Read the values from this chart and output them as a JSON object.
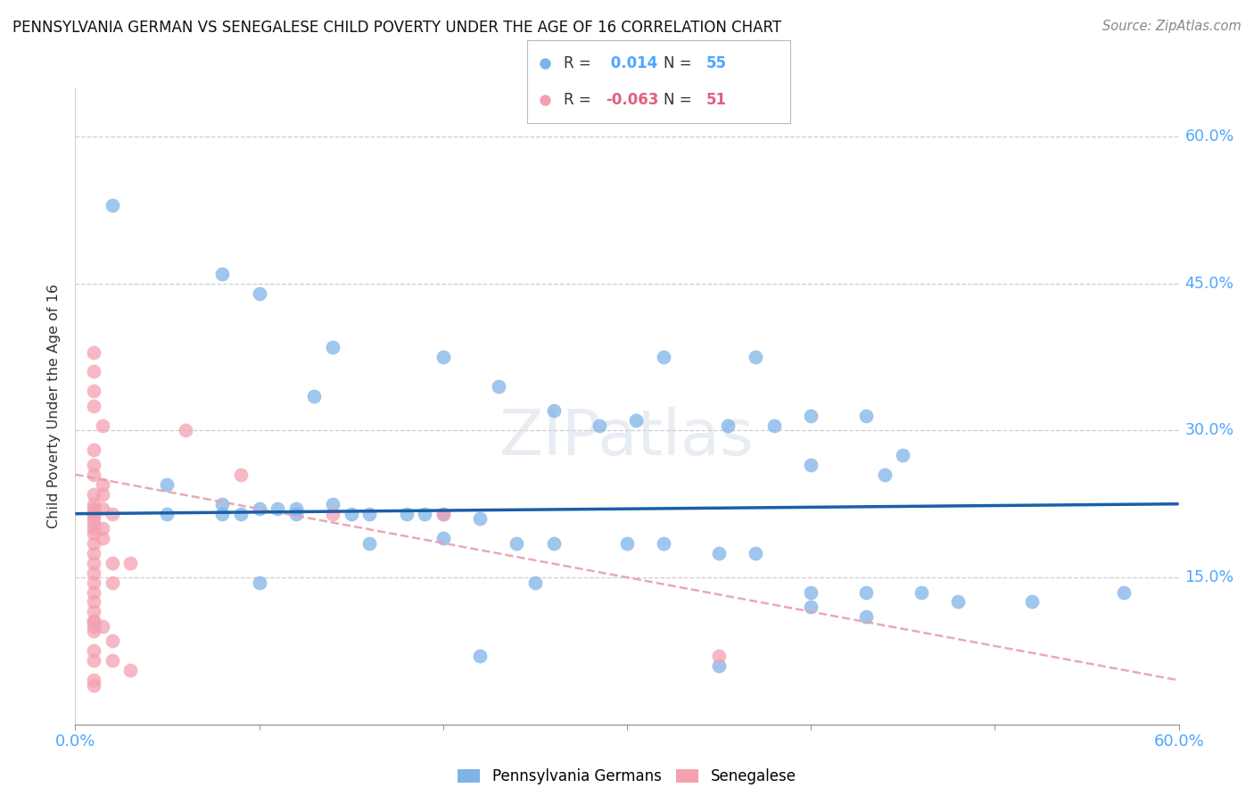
{
  "title": "PENNSYLVANIA GERMAN VS SENEGALESE CHILD POVERTY UNDER THE AGE OF 16 CORRELATION CHART",
  "source": "Source: ZipAtlas.com",
  "ylabel": "Child Poverty Under the Age of 16",
  "yticks": [
    0.0,
    0.15,
    0.3,
    0.45,
    0.6
  ],
  "ytick_labels": [
    "",
    "15.0%",
    "30.0%",
    "45.0%",
    "60.0%"
  ],
  "xlim": [
    0.0,
    0.6
  ],
  "ylim": [
    0.0,
    0.65
  ],
  "bg_color": "#ffffff",
  "grid_color": "#c8c8c8",
  "blue_scatter_color": "#7fb3e8",
  "pink_scatter_color": "#f4a0b0",
  "blue_line_color": "#1a5fa8",
  "pink_line_color": "#e8a0b0",
  "axis_label_color": "#4da6ff",
  "r_blue": "0.014",
  "n_blue": "55",
  "r_pink": "-0.063",
  "n_pink": "51",
  "legend_label_blue": "Pennsylvania Germans",
  "legend_label_pink": "Senegalese",
  "blue_points": [
    [
      0.02,
      0.53
    ],
    [
      0.08,
      0.46
    ],
    [
      0.1,
      0.44
    ],
    [
      0.14,
      0.385
    ],
    [
      0.2,
      0.375
    ],
    [
      0.23,
      0.345
    ],
    [
      0.13,
      0.335
    ],
    [
      0.26,
      0.32
    ],
    [
      0.32,
      0.375
    ],
    [
      0.37,
      0.375
    ],
    [
      0.4,
      0.315
    ],
    [
      0.43,
      0.315
    ],
    [
      0.285,
      0.305
    ],
    [
      0.355,
      0.305
    ],
    [
      0.305,
      0.31
    ],
    [
      0.38,
      0.305
    ],
    [
      0.45,
      0.275
    ],
    [
      0.4,
      0.265
    ],
    [
      0.44,
      0.255
    ],
    [
      0.05,
      0.245
    ],
    [
      0.08,
      0.225
    ],
    [
      0.1,
      0.22
    ],
    [
      0.11,
      0.22
    ],
    [
      0.12,
      0.22
    ],
    [
      0.14,
      0.225
    ],
    [
      0.05,
      0.215
    ],
    [
      0.08,
      0.215
    ],
    [
      0.09,
      0.215
    ],
    [
      0.12,
      0.215
    ],
    [
      0.15,
      0.215
    ],
    [
      0.16,
      0.215
    ],
    [
      0.18,
      0.215
    ],
    [
      0.19,
      0.215
    ],
    [
      0.2,
      0.215
    ],
    [
      0.22,
      0.21
    ],
    [
      0.16,
      0.185
    ],
    [
      0.2,
      0.19
    ],
    [
      0.24,
      0.185
    ],
    [
      0.26,
      0.185
    ],
    [
      0.3,
      0.185
    ],
    [
      0.32,
      0.185
    ],
    [
      0.35,
      0.175
    ],
    [
      0.37,
      0.175
    ],
    [
      0.1,
      0.145
    ],
    [
      0.25,
      0.145
    ],
    [
      0.4,
      0.135
    ],
    [
      0.43,
      0.135
    ],
    [
      0.46,
      0.135
    ],
    [
      0.48,
      0.125
    ],
    [
      0.52,
      0.125
    ],
    [
      0.22,
      0.07
    ],
    [
      0.35,
      0.06
    ],
    [
      0.4,
      0.12
    ],
    [
      0.43,
      0.11
    ],
    [
      0.57,
      0.135
    ]
  ],
  "pink_points": [
    [
      0.01,
      0.38
    ],
    [
      0.01,
      0.36
    ],
    [
      0.01,
      0.34
    ],
    [
      0.01,
      0.325
    ],
    [
      0.015,
      0.305
    ],
    [
      0.01,
      0.28
    ],
    [
      0.01,
      0.265
    ],
    [
      0.01,
      0.255
    ],
    [
      0.015,
      0.245
    ],
    [
      0.01,
      0.235
    ],
    [
      0.015,
      0.235
    ],
    [
      0.01,
      0.225
    ],
    [
      0.01,
      0.22
    ],
    [
      0.015,
      0.22
    ],
    [
      0.01,
      0.215
    ],
    [
      0.01,
      0.215
    ],
    [
      0.02,
      0.215
    ],
    [
      0.01,
      0.21
    ],
    [
      0.01,
      0.205
    ],
    [
      0.01,
      0.2
    ],
    [
      0.015,
      0.2
    ],
    [
      0.01,
      0.195
    ],
    [
      0.015,
      0.19
    ],
    [
      0.01,
      0.185
    ],
    [
      0.01,
      0.175
    ],
    [
      0.01,
      0.165
    ],
    [
      0.02,
      0.165
    ],
    [
      0.03,
      0.165
    ],
    [
      0.01,
      0.155
    ],
    [
      0.01,
      0.145
    ],
    [
      0.02,
      0.145
    ],
    [
      0.01,
      0.135
    ],
    [
      0.01,
      0.125
    ],
    [
      0.01,
      0.115
    ],
    [
      0.01,
      0.105
    ],
    [
      0.01,
      0.095
    ],
    [
      0.02,
      0.085
    ],
    [
      0.01,
      0.075
    ],
    [
      0.01,
      0.065
    ],
    [
      0.02,
      0.065
    ],
    [
      0.03,
      0.055
    ],
    [
      0.01,
      0.045
    ],
    [
      0.06,
      0.3
    ],
    [
      0.09,
      0.255
    ],
    [
      0.14,
      0.215
    ],
    [
      0.2,
      0.215
    ],
    [
      0.35,
      0.07
    ],
    [
      0.01,
      0.105
    ],
    [
      0.01,
      0.1
    ],
    [
      0.015,
      0.1
    ],
    [
      0.01,
      0.04
    ]
  ],
  "blue_trend_x": [
    0.0,
    0.6
  ],
  "blue_trend_y": [
    0.215,
    0.225
  ],
  "pink_trend_x": [
    0.0,
    0.6
  ],
  "pink_trend_y": [
    0.255,
    0.045
  ]
}
